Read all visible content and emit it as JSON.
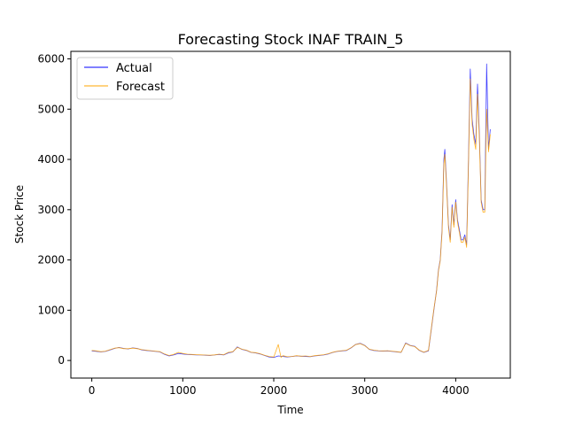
{
  "chart_data": {
    "type": "line",
    "title": "Forecasting Stock INAF TRAIN_5",
    "xlabel": "Time",
    "ylabel": "Stock Price",
    "xlim": [
      -230,
      4600
    ],
    "ylim": [
      -350,
      6150
    ],
    "xticks": [
      0,
      1000,
      2000,
      3000,
      4000
    ],
    "yticks": [
      0,
      1000,
      2000,
      3000,
      4000,
      5000,
      6000
    ],
    "grid": false,
    "legend_position": "top-left",
    "series": [
      {
        "name": "Actual",
        "color": "#0000ff",
        "x": [
          0,
          50,
          100,
          150,
          200,
          250,
          300,
          350,
          400,
          450,
          500,
          550,
          600,
          650,
          700,
          750,
          800,
          850,
          900,
          950,
          1000,
          1050,
          1100,
          1150,
          1200,
          1250,
          1300,
          1350,
          1400,
          1450,
          1500,
          1550,
          1600,
          1650,
          1700,
          1750,
          1800,
          1850,
          1900,
          1950,
          2000,
          2050,
          2100,
          2150,
          2200,
          2250,
          2300,
          2350,
          2400,
          2450,
          2500,
          2550,
          2600,
          2650,
          2700,
          2750,
          2800,
          2850,
          2900,
          2950,
          3000,
          3050,
          3100,
          3150,
          3200,
          3250,
          3300,
          3350,
          3400,
          3450,
          3500,
          3550,
          3600,
          3650,
          3700,
          3730,
          3760,
          3790,
          3810,
          3830,
          3850,
          3870,
          3880,
          3900,
          3920,
          3940,
          3960,
          3980,
          4000,
          4020,
          4040,
          4060,
          4080,
          4100,
          4120,
          4140,
          4160,
          4180,
          4200,
          4220,
          4240,
          4260,
          4280,
          4300,
          4320,
          4340,
          4360,
          4380
        ],
        "y": [
          190,
          180,
          170,
          180,
          210,
          240,
          260,
          240,
          230,
          250,
          240,
          210,
          200,
          190,
          180,
          170,
          120,
          90,
          110,
          140,
          130,
          120,
          115,
          110,
          110,
          105,
          100,
          110,
          120,
          110,
          150,
          170,
          270,
          220,
          200,
          160,
          150,
          130,
          100,
          70,
          60,
          90,
          80,
          70,
          80,
          90,
          85,
          80,
          75,
          90,
          100,
          110,
          130,
          160,
          180,
          190,
          200,
          250,
          320,
          340,
          300,
          220,
          200,
          190,
          185,
          190,
          180,
          170,
          160,
          350,
          300,
          280,
          200,
          160,
          190,
          600,
          1000,
          1400,
          1800,
          2000,
          2600,
          4000,
          4200,
          3500,
          2700,
          2400,
          3100,
          2700,
          3200,
          2800,
          2600,
          2400,
          2400,
          2500,
          2300,
          4000,
          5800,
          4800,
          4500,
          4300,
          5500,
          4500,
          3200,
          3000,
          3000,
          5900,
          4200,
          4600
        ]
      },
      {
        "name": "Forecast",
        "color": "#ffa500",
        "x": [
          0,
          50,
          100,
          150,
          200,
          250,
          300,
          350,
          400,
          450,
          500,
          550,
          600,
          650,
          700,
          750,
          800,
          850,
          900,
          950,
          1000,
          1050,
          1100,
          1150,
          1200,
          1250,
          1300,
          1350,
          1400,
          1450,
          1500,
          1550,
          1600,
          1650,
          1700,
          1750,
          1800,
          1850,
          1900,
          1950,
          2000,
          2050,
          2080,
          2100,
          2150,
          2200,
          2250,
          2300,
          2350,
          2400,
          2450,
          2500,
          2550,
          2600,
          2650,
          2700,
          2750,
          2800,
          2850,
          2900,
          2950,
          3000,
          3050,
          3100,
          3150,
          3200,
          3250,
          3300,
          3350,
          3400,
          3450,
          3500,
          3550,
          3600,
          3650,
          3700,
          3730,
          3760,
          3790,
          3810,
          3830,
          3850,
          3870,
          3880,
          3900,
          3920,
          3940,
          3960,
          3980,
          4000,
          4020,
          4040,
          4060,
          4080,
          4100,
          4120,
          4140,
          4160,
          4180,
          4200,
          4220,
          4240,
          4260,
          4280,
          4300,
          4320,
          4340,
          4360,
          4380
        ],
        "y": [
          200,
          190,
          175,
          185,
          215,
          245,
          255,
          235,
          235,
          245,
          235,
          215,
          205,
          195,
          185,
          175,
          130,
          100,
          120,
          160,
          140,
          125,
          120,
          115,
          112,
          108,
          105,
          112,
          125,
          115,
          160,
          175,
          260,
          225,
          205,
          165,
          155,
          135,
          105,
          80,
          70,
          320,
          60,
          95,
          75,
          80,
          95,
          85,
          90,
          80,
          95,
          105,
          115,
          135,
          165,
          185,
          195,
          205,
          255,
          315,
          335,
          295,
          225,
          205,
          195,
          190,
          195,
          185,
          175,
          165,
          340,
          295,
          275,
          205,
          165,
          200,
          620,
          1020,
          1380,
          1780,
          1980,
          2550,
          3900,
          4100,
          3450,
          2650,
          2350,
          3050,
          2650,
          3150,
          2750,
          2550,
          2350,
          2350,
          2450,
          2250,
          3900,
          5600,
          4700,
          4400,
          4200,
          5300,
          4400,
          3150,
          2950,
          2950,
          5000,
          4150,
          4500
        ]
      }
    ]
  }
}
